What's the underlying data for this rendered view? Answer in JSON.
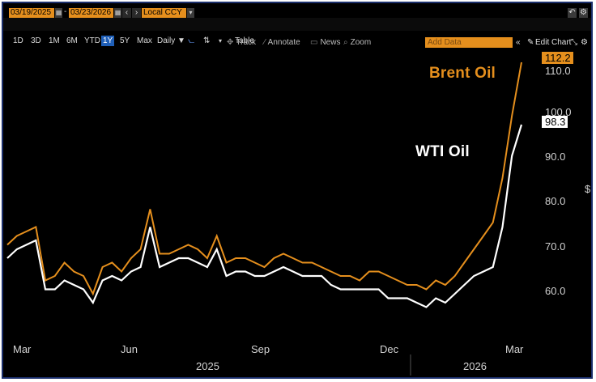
{
  "toolbar": {
    "start_date": "03/19/2025",
    "end_date": "03/23/2026",
    "currency": "Local CCY",
    "table_label": "Table",
    "add_data_placeholder": "Add Data",
    "edit_chart_label": "Edit Chart",
    "frequency": "Daily ▼",
    "ranges": [
      "1D",
      "3D",
      "1M",
      "6M",
      "YTD",
      "1Y",
      "5Y",
      "Max"
    ],
    "active_range": "1Y"
  },
  "tools": [
    {
      "icon": "✥",
      "label": "Track"
    },
    {
      "icon": "⁄",
      "label": "Annotate"
    },
    {
      "icon": "▭",
      "label": "News"
    },
    {
      "icon": "⌕",
      "label": "Zoom"
    }
  ],
  "colors": {
    "brent": "#e58f1d",
    "wti": "#ffffff",
    "accent": "#e58f1d",
    "active_range": "#1f5fb8"
  },
  "chart_data": {
    "type": "line",
    "xlabel": "",
    "ylabel": "$",
    "ylim": [
      52,
      116
    ],
    "y_ticks": [
      "110.0",
      "100.0",
      "90.0",
      "80.0",
      "70.0",
      "60.0"
    ],
    "month_ticks": [
      "Mar",
      "Jun",
      "Sep",
      "Dec",
      "Mar"
    ],
    "year_labels": [
      "2025",
      "2026"
    ],
    "x_range_weeks": [
      0,
      54
    ],
    "series": [
      {
        "name": "Brent Oil",
        "last_value": "112.2",
        "values": [
          71,
          73,
          74,
          75,
          63,
          64,
          67,
          65,
          64,
          60,
          66,
          67,
          65,
          68,
          70,
          79,
          69,
          69,
          70,
          71,
          70,
          68,
          73,
          67,
          68,
          68,
          67,
          66,
          68,
          69,
          68,
          67,
          67,
          66,
          65,
          64,
          64,
          63,
          65,
          65,
          64,
          63,
          62,
          62,
          61,
          63,
          62,
          64,
          67,
          70,
          73,
          76,
          86,
          100,
          112
        ]
      },
      {
        "name": "WTI Oil",
        "last_value": "98.3",
        "values": [
          68,
          70,
          71,
          72,
          61,
          61,
          63,
          62,
          61,
          58,
          63,
          64,
          63,
          65,
          66,
          75,
          66,
          67,
          68,
          68,
          67,
          66,
          70,
          64,
          65,
          65,
          64,
          64,
          65,
          66,
          65,
          64,
          64,
          64,
          62,
          61,
          61,
          61,
          61,
          61,
          59,
          59,
          59,
          58,
          57,
          59,
          58,
          60,
          62,
          64,
          65,
          66,
          75,
          91,
          98
        ]
      }
    ]
  }
}
